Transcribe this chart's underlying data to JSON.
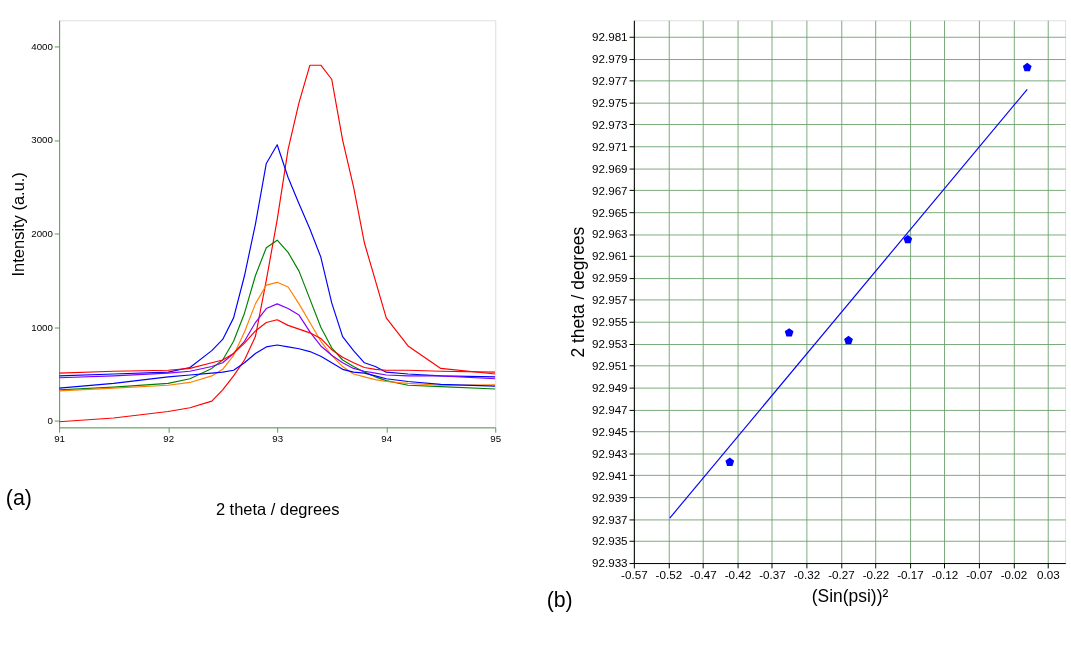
{
  "chart_data": [
    {
      "type": "line",
      "xlabel": "2 theta / degrees",
      "ylabel": "Intensity (a.u.)",
      "annotations": [
        "(a)"
      ],
      "xlim": [
        91,
        95
      ],
      "ylim": [
        -70,
        4280
      ],
      "xticks": [
        91,
        92,
        93,
        94,
        95
      ],
      "yticks": [
        0,
        1000,
        2000,
        3000,
        4000
      ],
      "grid": false,
      "x": [
        91,
        91.5,
        92,
        92.2,
        92.4,
        92.5,
        92.6,
        92.7,
        92.8,
        92.9,
        93.0,
        93.1,
        93.2,
        93.3,
        93.4,
        93.5,
        93.6,
        93.7,
        93.8,
        93.9,
        94.0,
        94.2,
        94.5,
        95
      ],
      "series": [
        {
          "color": "#ff0000",
          "values": [
            -10,
            30,
            100,
            140,
            210,
            330,
            480,
            650,
            900,
            1500,
            2150,
            2900,
            3400,
            3800,
            3800,
            3650,
            3000,
            2500,
            1900,
            1500,
            1100,
            800,
            560,
            500
          ]
        },
        {
          "color": "#0000ff",
          "values": [
            480,
            500,
            520,
            570,
            750,
            870,
            1100,
            1550,
            2100,
            2750,
            2950,
            2600,
            2320,
            2050,
            1750,
            1260,
            900,
            750,
            620,
            580,
            520,
            500,
            480,
            470
          ]
        },
        {
          "color": "#008000",
          "values": [
            330,
            360,
            400,
            450,
            560,
            650,
            850,
            1150,
            1550,
            1850,
            1930,
            1800,
            1600,
            1300,
            1000,
            780,
            650,
            580,
            520,
            470,
            430,
            380,
            365,
            340
          ]
        },
        {
          "color": "#ff8000",
          "values": [
            320,
            350,
            380,
            410,
            480,
            550,
            700,
            950,
            1250,
            1450,
            1480,
            1430,
            1250,
            1050,
            850,
            700,
            580,
            500,
            470,
            440,
            420,
            400,
            380,
            385
          ]
        },
        {
          "color": "#8000ff",
          "values": [
            460,
            480,
            510,
            530,
            580,
            620,
            720,
            850,
            1050,
            1200,
            1250,
            1200,
            1130,
            950,
            800,
            700,
            620,
            560,
            530,
            510,
            490,
            480,
            480,
            450
          ]
        },
        {
          "color": "#ff0000",
          "values": [
            510,
            530,
            540,
            560,
            620,
            650,
            720,
            830,
            960,
            1050,
            1080,
            1020,
            980,
            940,
            880,
            760,
            680,
            620,
            570,
            550,
            540,
            540,
            530,
            520
          ]
        },
        {
          "color": "#0000ff",
          "values": [
            350,
            400,
            470,
            490,
            510,
            520,
            540,
            620,
            720,
            790,
            810,
            790,
            770,
            740,
            690,
            620,
            550,
            520,
            510,
            480,
            450,
            420,
            390,
            370
          ]
        }
      ]
    },
    {
      "type": "scatter",
      "xlabel": "(Sin(psi))²",
      "ylabel": "2 theta / degrees",
      "annotations": [
        "(b)"
      ],
      "xlim": [
        -0.57,
        0.055
      ],
      "ylim": [
        92.933,
        92.9825
      ],
      "xticks": [
        -0.57,
        -0.52,
        -0.47,
        -0.42,
        -0.37,
        -0.32,
        -0.27,
        -0.22,
        -0.17,
        -0.12,
        -0.07,
        -0.02,
        0.03
      ],
      "yticks": [
        92.933,
        92.935,
        92.937,
        92.939,
        92.941,
        92.943,
        92.945,
        92.947,
        92.949,
        92.951,
        92.953,
        92.955,
        92.957,
        92.959,
        92.961,
        92.963,
        92.965,
        92.967,
        92.969,
        92.971,
        92.973,
        92.975,
        92.977,
        92.979,
        92.981
      ],
      "grid": true,
      "series": [
        {
          "type": "scatter",
          "color": "#0000ff",
          "x": [
            -0.431,
            -0.345,
            -0.259,
            -0.173,
            0.0
          ],
          "values": [
            92.9422,
            92.954,
            92.9533,
            92.9625,
            92.9782
          ]
        },
        {
          "type": "line",
          "color": "#0000ff",
          "x": [
            -0.518,
            0.0
          ],
          "values": [
            92.9371,
            92.9762
          ]
        }
      ]
    }
  ]
}
